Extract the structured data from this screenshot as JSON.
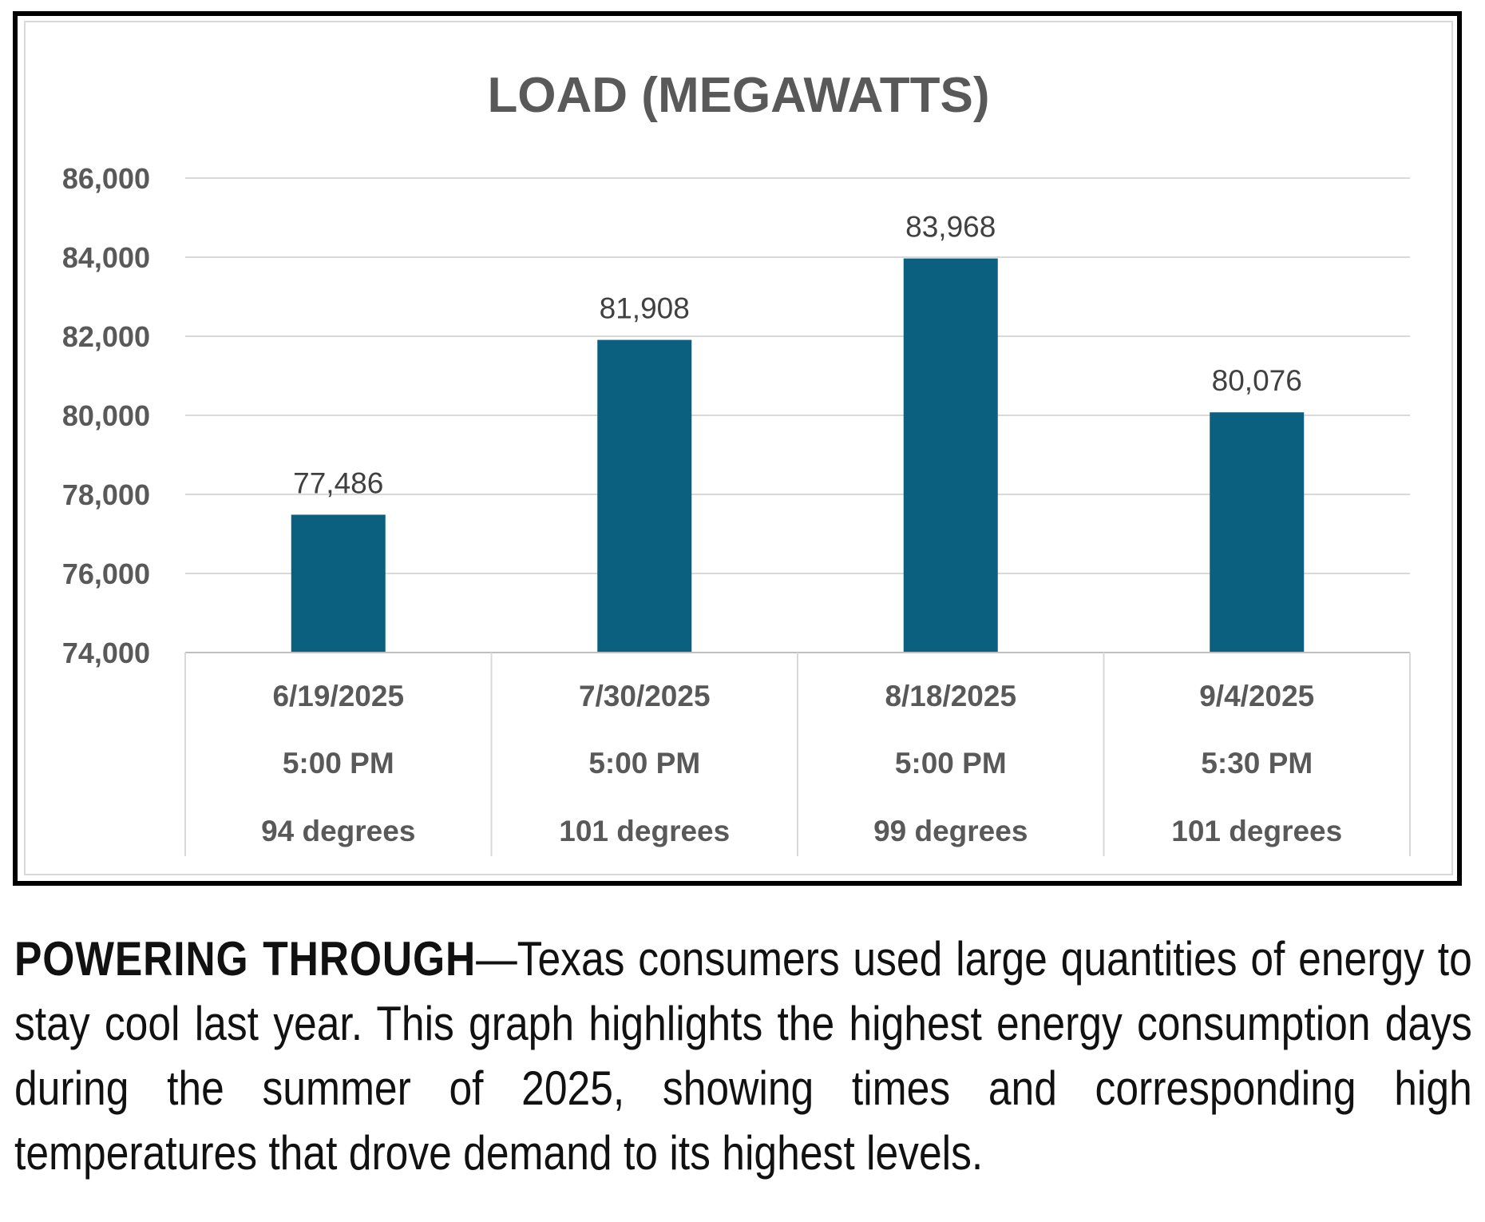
{
  "chart_data": {
    "type": "bar",
    "title": "LOAD (MEGAWATTS)",
    "xlabel": "",
    "ylabel": "",
    "ylim": [
      74000,
      86000
    ],
    "yticks": [
      86000,
      84000,
      82000,
      80000,
      78000,
      76000,
      74000
    ],
    "ytick_labels": [
      "86,000",
      "84,000",
      "82,000",
      "80,000",
      "78,000",
      "76,000",
      "74,000"
    ],
    "grid": true,
    "legend": "none",
    "bar_color": "#0b5f7f",
    "categories": [
      {
        "date": "6/19/2025",
        "time": "5:00 PM",
        "temp": "94 degrees"
      },
      {
        "date": "7/30/2025",
        "time": "5:00 PM",
        "temp": "101 degrees"
      },
      {
        "date": "8/18/2025",
        "time": "5:00 PM",
        "temp": "99 degrees"
      },
      {
        "date": "9/4/2025",
        "time": "5:30 PM",
        "temp": "101 degrees"
      }
    ],
    "values": [
      77486,
      81908,
      83968,
      80076
    ],
    "value_labels": [
      "77,486",
      "81,908",
      "83,968",
      "80,076"
    ]
  },
  "caption": {
    "lead": "POWERING THROUGH",
    "text": "—Texas consumers used large quantities of energy to stay cool last year. This graph highlights the highest energy consumption days during the summer of 2025, showing times and corresponding high temperatures that drove demand to its highest levels."
  }
}
